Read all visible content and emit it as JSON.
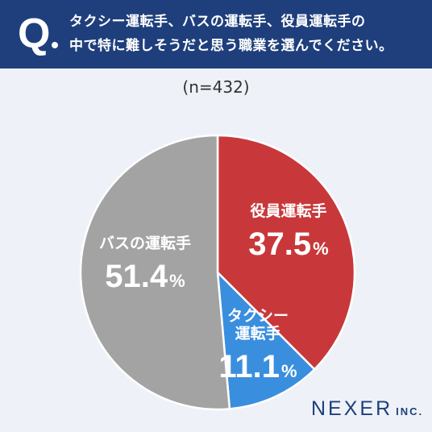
{
  "header": {
    "q_mark": "Q",
    "question_line1": "タクシー運転手、バスの運転手、役員運転手の",
    "question_line2": "中で特に難しそうだと思う職業を選んでください。"
  },
  "sample_size": "(n=432)",
  "brand": {
    "name": "NEXER",
    "suffix": "INC."
  },
  "colors": {
    "header_bg": "#1f3f7c",
    "executive": "#c8383a",
    "taxi": "#3a8ede",
    "bus": "#a3a3a3"
  },
  "chart_data": {
    "type": "pie",
    "title": "",
    "slices": [
      {
        "label": "役員運転手",
        "label_lines": [
          "役員運転手"
        ],
        "value": 37.5,
        "value_text": "37.5",
        "unit": "%",
        "color": "#c8383a"
      },
      {
        "label": "タクシー運転手",
        "label_lines": [
          "タクシー",
          "運転手"
        ],
        "value": 11.1,
        "value_text": "11.1",
        "unit": "%",
        "color": "#3a8ede"
      },
      {
        "label": "バスの運転手",
        "label_lines": [
          "バスの運転手"
        ],
        "value": 51.4,
        "value_text": "51.4",
        "unit": "%",
        "color": "#a3a3a3"
      }
    ]
  }
}
